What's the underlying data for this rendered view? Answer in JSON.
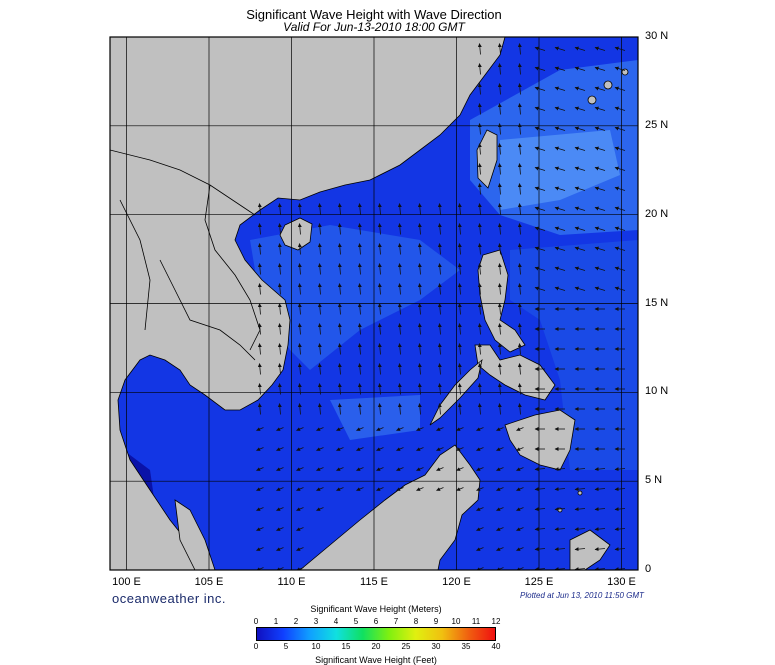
{
  "header": {
    "title": "Significant Wave Height with Wave Direction",
    "subtitle": "Valid For Jun-13-2010 18:00 GMT"
  },
  "map": {
    "lon_range": [
      99,
      131
    ],
    "lat_range": [
      0,
      30
    ],
    "lon_labels": [
      {
        "value": 100,
        "text": "100 E"
      },
      {
        "value": 105,
        "text": "105 E"
      },
      {
        "value": 110,
        "text": "110 E"
      },
      {
        "value": 115,
        "text": "115 E"
      },
      {
        "value": 120,
        "text": "120 E"
      },
      {
        "value": 125,
        "text": "125 E"
      },
      {
        "value": 130,
        "text": "130 E"
      }
    ],
    "lat_labels": [
      {
        "value": 30,
        "text": "30 N"
      },
      {
        "value": 25,
        "text": "25 N"
      },
      {
        "value": 20,
        "text": "20 N"
      },
      {
        "value": 15,
        "text": "15 N"
      },
      {
        "value": 10,
        "text": "10 N"
      },
      {
        "value": 5,
        "text": "5 N"
      },
      {
        "value": 0,
        "text": "0"
      }
    ],
    "colors": {
      "land": "#c0c0c0",
      "sea_low": "#1030e0",
      "sea_mid": "#2060ee",
      "sea_high": "#3a80f4",
      "sea_very_low": "#0a10b0"
    }
  },
  "footer": {
    "brand": "oceanweather inc.",
    "plotted": "Plotted at Jun 13, 2010 11:50 GMT"
  },
  "colorbar": {
    "title_top": "Significant Wave Height (Meters)",
    "title_bottom": "Significant Wave Height (Feet)",
    "meters": [
      "0",
      "1",
      "2",
      "3",
      "4",
      "5",
      "6",
      "7",
      "8",
      "9",
      "10",
      "11",
      "12"
    ],
    "feet": [
      "0",
      "5",
      "10",
      "15",
      "20",
      "25",
      "30",
      "35",
      "40"
    ],
    "meters_range": [
      0,
      12
    ],
    "feet_range": [
      0,
      40
    ],
    "stops": [
      "#1010c0",
      "#1040ff",
      "#10a0ff",
      "#10e0e0",
      "#10e060",
      "#80f010",
      "#e0f010",
      "#f0c010",
      "#f06010",
      "#f01010"
    ]
  }
}
